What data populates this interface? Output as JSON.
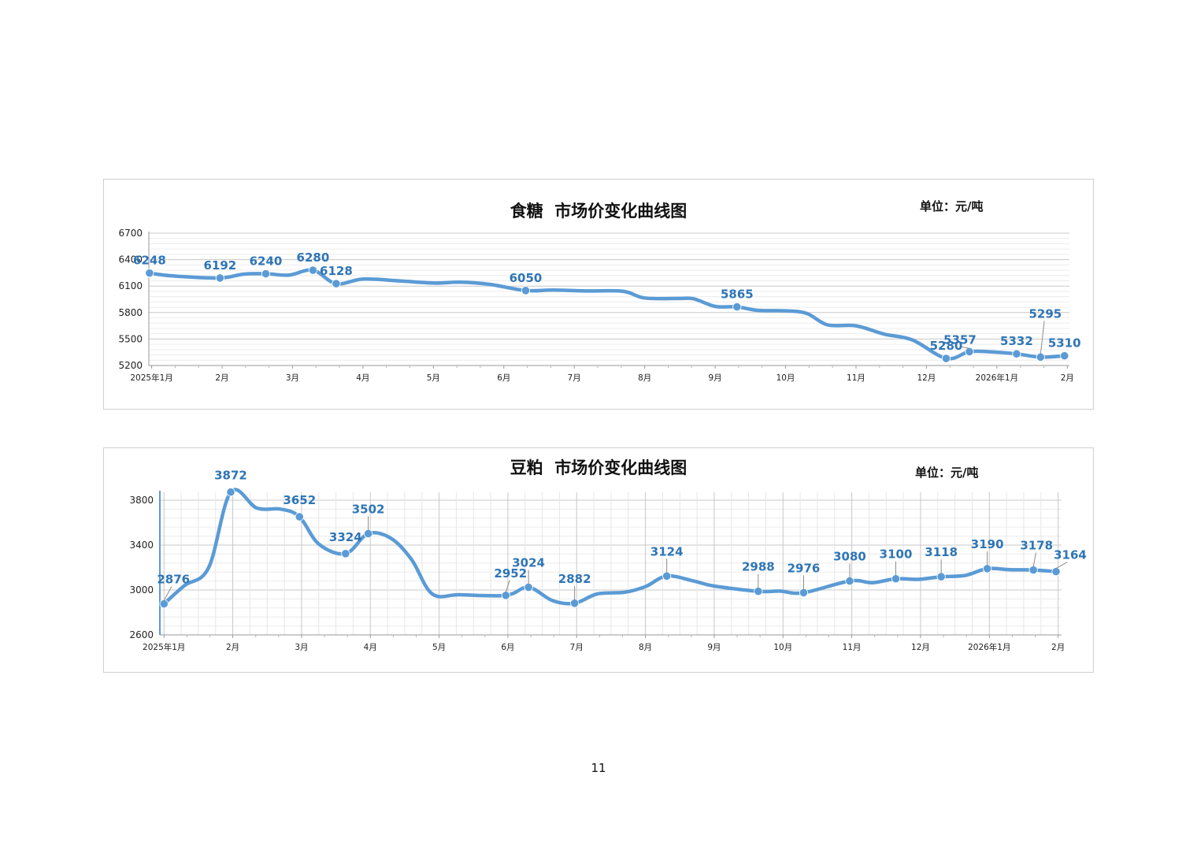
{
  "page_number": "11",
  "chart_data": [
    {
      "type": "line",
      "title": "食糖  市场价变化曲线图",
      "unit": "单位：元/吨",
      "y_ticks": [
        5200,
        5500,
        5800,
        6100,
        6400,
        6700
      ],
      "ylim": [
        5200,
        6700
      ],
      "x_ticks": [
        {
          "label": "2025年1月",
          "x": 1
        },
        {
          "label": "2月",
          "x": 2
        },
        {
          "label": "3月",
          "x": 3
        },
        {
          "label": "4月",
          "x": 4
        },
        {
          "label": "5月",
          "x": 5
        },
        {
          "label": "6月",
          "x": 6
        },
        {
          "label": "7月",
          "x": 7
        },
        {
          "label": "8月",
          "x": 8
        },
        {
          "label": "9月",
          "x": 9
        },
        {
          "label": "10月",
          "x": 10
        },
        {
          "label": "11月",
          "x": 11
        },
        {
          "label": "12月",
          "x": 12
        },
        {
          "label": "2026年1月",
          "x": 13
        },
        {
          "label": "2月",
          "x": 14
        }
      ],
      "xlim": [
        0.96,
        14.03
      ],
      "color": "#5b9bd5",
      "label_color": "#2e75b6",
      "grid": true,
      "series": [
        {
          "values": [
            {
              "x": 0.97,
              "y": 6248,
              "label": "6248"
            },
            {
              "x": 1.3,
              "y": 6215
            },
            {
              "x": 1.97,
              "y": 6192,
              "label": "6192"
            },
            {
              "x": 2.3,
              "y": 6235
            },
            {
              "x": 2.62,
              "y": 6240,
              "label": "6240"
            },
            {
              "x": 2.95,
              "y": 6225
            },
            {
              "x": 3.29,
              "y": 6280,
              "label": "6280"
            },
            {
              "x": 3.62,
              "y": 6128,
              "label": "6128"
            },
            {
              "x": 4.0,
              "y": 6180
            },
            {
              "x": 4.5,
              "y": 6160
            },
            {
              "x": 5.0,
              "y": 6135
            },
            {
              "x": 5.4,
              "y": 6145
            },
            {
              "x": 5.8,
              "y": 6120
            },
            {
              "x": 6.31,
              "y": 6050,
              "label": "6050"
            },
            {
              "x": 6.7,
              "y": 6055
            },
            {
              "x": 7.2,
              "y": 6045
            },
            {
              "x": 7.7,
              "y": 6040
            },
            {
              "x": 8.0,
              "y": 5965
            },
            {
              "x": 8.5,
              "y": 5960
            },
            {
              "x": 8.7,
              "y": 5955
            },
            {
              "x": 9.0,
              "y": 5870
            },
            {
              "x": 9.31,
              "y": 5865,
              "label": "5865"
            },
            {
              "x": 9.6,
              "y": 5825
            },
            {
              "x": 10.0,
              "y": 5820
            },
            {
              "x": 10.3,
              "y": 5790
            },
            {
              "x": 10.6,
              "y": 5660
            },
            {
              "x": 11.0,
              "y": 5650
            },
            {
              "x": 11.4,
              "y": 5555
            },
            {
              "x": 11.8,
              "y": 5490
            },
            {
              "x": 12.28,
              "y": 5280,
              "label": "5280"
            },
            {
              "x": 12.61,
              "y": 5357,
              "label": "5357"
            },
            {
              "x": 12.9,
              "y": 5355
            },
            {
              "x": 13.28,
              "y": 5332,
              "label": "5332"
            },
            {
              "x": 13.62,
              "y": 5295,
              "label": "5295"
            },
            {
              "x": 13.96,
              "y": 5310,
              "label": "5310"
            }
          ]
        }
      ]
    },
    {
      "type": "line",
      "title": "豆粕  市场价变化曲线图",
      "unit": "单位：元/吨",
      "y_ticks": [
        2600,
        3000,
        3400,
        3800
      ],
      "ylim": [
        2600,
        3870
      ],
      "x_ticks": [
        {
          "label": "2025年1月",
          "x": 1
        },
        {
          "label": "2月",
          "x": 2
        },
        {
          "label": "3月",
          "x": 3
        },
        {
          "label": "4月",
          "x": 4
        },
        {
          "label": "5月",
          "x": 5
        },
        {
          "label": "6月",
          "x": 6
        },
        {
          "label": "7月",
          "x": 7
        },
        {
          "label": "8月",
          "x": 8
        },
        {
          "label": "9月",
          "x": 9
        },
        {
          "label": "10月",
          "x": 10
        },
        {
          "label": "11月",
          "x": 11
        },
        {
          "label": "12月",
          "x": 12
        },
        {
          "label": "2026年1月",
          "x": 13
        },
        {
          "label": "2月",
          "x": 14
        }
      ],
      "xlim": [
        0.94,
        14.05
      ],
      "color": "#5b9bd5",
      "label_color": "#2e75b6",
      "grid": true,
      "series": [
        {
          "values": [
            {
              "x": 1.0,
              "y": 2876,
              "label": "2876"
            },
            {
              "x": 1.3,
              "y": 3040
            },
            {
              "x": 1.65,
              "y": 3200
            },
            {
              "x": 1.97,
              "y": 3872,
              "label": "3872"
            },
            {
              "x": 2.35,
              "y": 3730
            },
            {
              "x": 2.7,
              "y": 3720
            },
            {
              "x": 2.97,
              "y": 3652,
              "label": "3652"
            },
            {
              "x": 3.25,
              "y": 3410
            },
            {
              "x": 3.64,
              "y": 3324,
              "label": "3324"
            },
            {
              "x": 3.97,
              "y": 3502,
              "label": "3502"
            },
            {
              "x": 4.3,
              "y": 3460
            },
            {
              "x": 4.6,
              "y": 3270
            },
            {
              "x": 4.9,
              "y": 2965
            },
            {
              "x": 5.3,
              "y": 2958
            },
            {
              "x": 5.97,
              "y": 2952,
              "label": "2952"
            },
            {
              "x": 6.3,
              "y": 3024,
              "label": "3024"
            },
            {
              "x": 6.65,
              "y": 2905
            },
            {
              "x": 6.97,
              "y": 2882,
              "label": "2882"
            },
            {
              "x": 7.3,
              "y": 2965
            },
            {
              "x": 7.7,
              "y": 2980
            },
            {
              "x": 8.0,
              "y": 3030
            },
            {
              "x": 8.31,
              "y": 3124,
              "label": "3124"
            },
            {
              "x": 8.7,
              "y": 3080
            },
            {
              "x": 9.0,
              "y": 3035
            },
            {
              "x": 9.64,
              "y": 2988,
              "label": "2988"
            },
            {
              "x": 9.95,
              "y": 2990
            },
            {
              "x": 10.3,
              "y": 2976,
              "label": "2976"
            },
            {
              "x": 10.97,
              "y": 3080,
              "label": "3080"
            },
            {
              "x": 11.3,
              "y": 3065
            },
            {
              "x": 11.64,
              "y": 3100,
              "label": "3100"
            },
            {
              "x": 11.97,
              "y": 3095
            },
            {
              "x": 12.3,
              "y": 3118,
              "label": "3118"
            },
            {
              "x": 12.65,
              "y": 3130
            },
            {
              "x": 12.97,
              "y": 3190,
              "label": "3190"
            },
            {
              "x": 13.3,
              "y": 3180
            },
            {
              "x": 13.64,
              "y": 3178,
              "label": "3178"
            },
            {
              "x": 13.97,
              "y": 3164,
              "label": "3164"
            }
          ]
        }
      ]
    }
  ]
}
